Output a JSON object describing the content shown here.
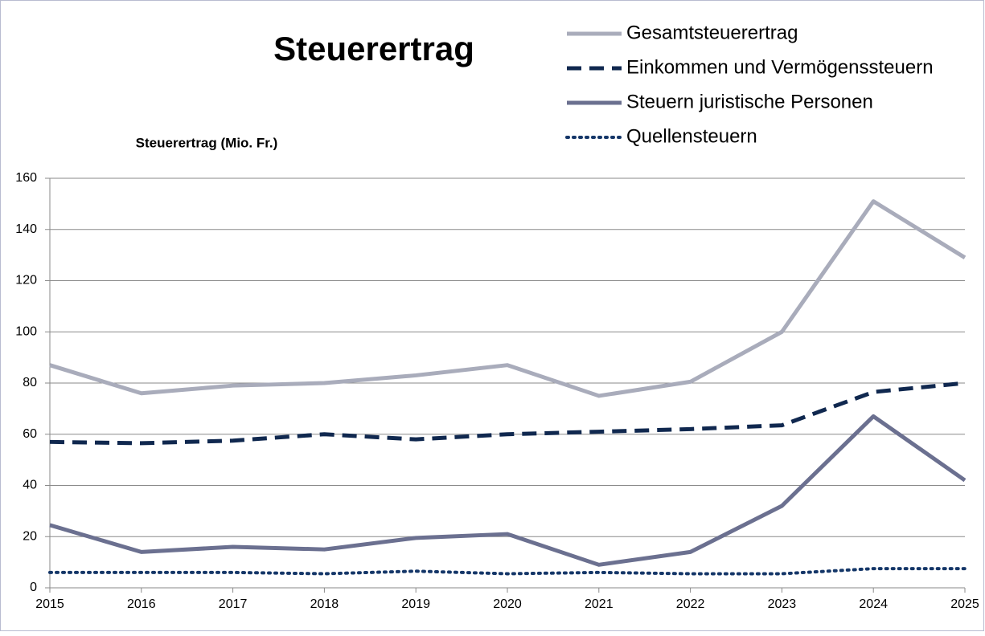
{
  "chart_data": {
    "type": "line",
    "title": "Steuerertrag",
    "y_label": "Steuerertrag (Mio. Fr.)",
    "x": [
      2015,
      2016,
      2017,
      2018,
      2019,
      2020,
      2021,
      2022,
      2023,
      2024,
      2025
    ],
    "xlim": [
      2015,
      2025
    ],
    "xticks": [
      2015,
      2016,
      2017,
      2018,
      2019,
      2020,
      2021,
      2022,
      2023,
      2024,
      2025
    ],
    "ylim": [
      0,
      160
    ],
    "yticks": [
      0,
      20,
      40,
      60,
      80,
      100,
      120,
      140,
      160
    ],
    "grid": true,
    "legend": "top-right",
    "series": [
      {
        "name": "Gesamtsteuerertrag",
        "color": "#a9acbb",
        "dash": "solid",
        "values": [
          87,
          76,
          79,
          80,
          83,
          87,
          75,
          80.5,
          100,
          151,
          129
        ]
      },
      {
        "name": "Einkommen und Vermögenssteuern",
        "color": "#10284f",
        "dash": "dashed",
        "values": [
          57,
          56.5,
          57.5,
          60,
          58,
          60,
          61,
          62,
          63.5,
          76.5,
          80
        ]
      },
      {
        "name": "Steuern juristische Personen",
        "color": "#6b7090",
        "dash": "solid",
        "values": [
          24.5,
          14,
          16,
          15,
          19.5,
          21,
          9,
          14,
          32,
          67,
          42
        ]
      },
      {
        "name": "Quellensteuern",
        "color": "#143668",
        "dash": "dotted",
        "values": [
          6,
          6,
          6,
          5.5,
          6.5,
          5.5,
          6,
          5.5,
          5.5,
          7.5,
          7.5
        ]
      }
    ]
  }
}
